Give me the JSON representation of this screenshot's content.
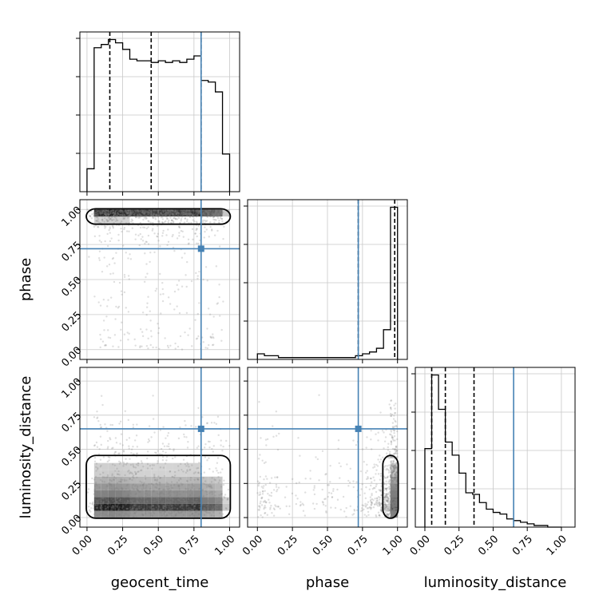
{
  "chart_data": {
    "type": "corner",
    "parameters": [
      "geocent_time",
      "phase",
      "luminosity_distance"
    ],
    "axis_labels": {
      "geocent_time": "geocent_time",
      "phase": "phase",
      "luminosity_distance": "luminosity_distance"
    },
    "tick_values": [
      0.0,
      0.25,
      0.5,
      0.75,
      1.0
    ],
    "tick_labels": [
      "0.00",
      "0.25",
      "0.50",
      "0.75",
      "1.00"
    ],
    "range": {
      "geocent_time": [
        -0.05,
        1.07
      ],
      "phase": [
        -0.07,
        1.07
      ],
      "luminosity_distance": [
        -0.07,
        1.1
      ]
    },
    "truths": {
      "geocent_time": 0.8,
      "phase": 0.72,
      "luminosity_distance": 0.65
    },
    "truth_color": "#4682b4",
    "hist_color": "#000000",
    "grid": true,
    "histograms": {
      "geocent_time": {
        "edges": [
          0.0,
          0.05,
          0.1,
          0.15,
          0.2,
          0.25,
          0.3,
          0.35,
          0.4,
          0.45,
          0.5,
          0.55,
          0.6,
          0.65,
          0.7,
          0.75,
          0.8,
          0.85,
          0.9,
          0.95,
          1.0
        ],
        "counts": [
          0.14,
          0.88,
          0.9,
          0.93,
          0.91,
          0.87,
          0.81,
          0.8,
          0.8,
          0.79,
          0.8,
          0.79,
          0.8,
          0.79,
          0.81,
          0.83,
          0.68,
          0.67,
          0.61,
          0.23
        ],
        "quantiles": [
          0.16,
          0.45,
          0.8
        ]
      },
      "phase": {
        "edges": [
          0.0,
          0.05,
          0.1,
          0.15,
          0.2,
          0.25,
          0.3,
          0.35,
          0.4,
          0.45,
          0.5,
          0.55,
          0.6,
          0.65,
          0.7,
          0.75,
          0.8,
          0.85,
          0.9,
          0.95,
          1.0
        ],
        "counts": [
          0.03,
          0.02,
          0.02,
          0.01,
          0.01,
          0.01,
          0.01,
          0.01,
          0.01,
          0.01,
          0.01,
          0.01,
          0.01,
          0.01,
          0.02,
          0.03,
          0.04,
          0.06,
          0.16,
          0.82
        ],
        "quantiles": [
          0.72,
          0.98
        ]
      },
      "luminosity_distance": {
        "edges": [
          0.0,
          0.05,
          0.1,
          0.15,
          0.2,
          0.25,
          0.3,
          0.35,
          0.4,
          0.45,
          0.5,
          0.55,
          0.6,
          0.65,
          0.7,
          0.75,
          0.8,
          0.85,
          0.9,
          0.95,
          1.0
        ],
        "counts": [
          0.48,
          0.93,
          0.72,
          0.52,
          0.44,
          0.33,
          0.21,
          0.2,
          0.15,
          0.11,
          0.09,
          0.08,
          0.05,
          0.04,
          0.03,
          0.02,
          0.01,
          0.01,
          0.0,
          0.0
        ],
        "quantiles": [
          0.05,
          0.15,
          0.36
        ]
      }
    }
  }
}
